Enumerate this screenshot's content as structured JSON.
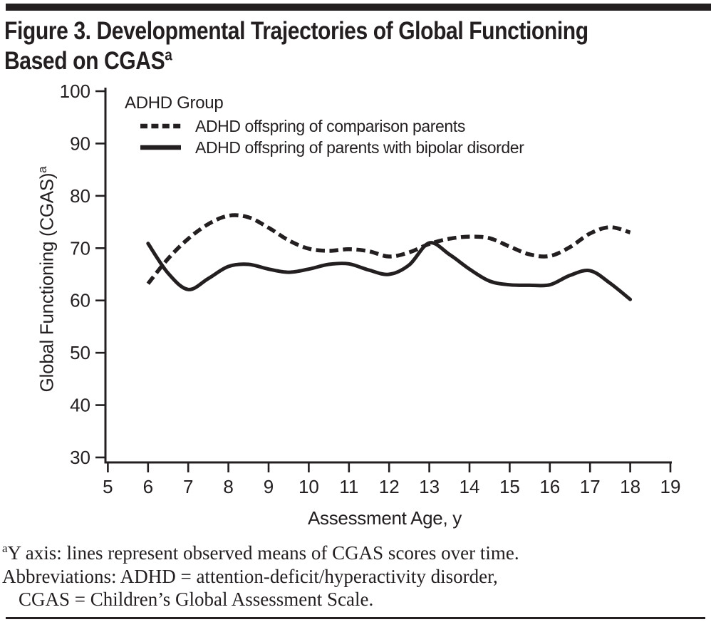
{
  "figure": {
    "title_line1": "Figure 3. Developmental Trajectories of Global Functioning",
    "title_line2": "Based on CGAS",
    "title_superscript": "a"
  },
  "legend": {
    "title": "ADHD Group",
    "items": [
      {
        "label": "ADHD offspring of comparison parents",
        "style": "dashed"
      },
      {
        "label": "ADHD offspring of parents with bipolar disorder",
        "style": "solid"
      }
    ]
  },
  "chart_data": {
    "type": "line",
    "xlabel": "Assessment Age, y",
    "ylabel": "Global Functioning (CGAS)",
    "ylabel_superscript": "a",
    "xlim": [
      5,
      19
    ],
    "ylim": [
      30,
      100
    ],
    "x_ticks": [
      5,
      6,
      7,
      8,
      9,
      10,
      11,
      12,
      13,
      14,
      15,
      16,
      17,
      18,
      19
    ],
    "y_ticks": [
      30,
      40,
      50,
      60,
      70,
      80,
      90,
      100
    ],
    "grid": false,
    "legend_position": "top-left-inside",
    "line_color": "#231f20",
    "series": [
      {
        "name": "ADHD offspring of comparison parents",
        "line_style": "dashed",
        "x": [
          6,
          6.5,
          7,
          7.5,
          8,
          8.5,
          9,
          9.5,
          10,
          10.5,
          11,
          11.5,
          12,
          12.5,
          13,
          13.5,
          14,
          14.5,
          15,
          15.5,
          16,
          16.5,
          17,
          17.5,
          18
        ],
        "y": [
          63.2,
          68.0,
          71.8,
          74.6,
          76.2,
          75.9,
          73.9,
          71.5,
          69.9,
          69.5,
          69.8,
          69.4,
          68.4,
          69.2,
          70.8,
          71.8,
          72.2,
          71.9,
          70.3,
          68.8,
          68.5,
          70.2,
          72.8,
          74.0,
          73.0
        ]
      },
      {
        "name": "ADHD offspring of parents with bipolar disorder",
        "line_style": "solid",
        "x": [
          6,
          6.5,
          7,
          7.5,
          8,
          8.5,
          9,
          9.5,
          10,
          10.5,
          11,
          11.5,
          12,
          12.5,
          13,
          13.5,
          14,
          14.5,
          15,
          15.5,
          16,
          16.5,
          17,
          17.5,
          18
        ],
        "y": [
          70.9,
          65.2,
          62.1,
          64.2,
          66.5,
          66.9,
          66.0,
          65.4,
          66.0,
          66.9,
          67.0,
          65.8,
          65.0,
          66.8,
          71.0,
          68.8,
          66.0,
          63.7,
          63.0,
          62.9,
          63.0,
          64.8,
          65.7,
          63.3,
          60.2
        ]
      }
    ]
  },
  "footnotes": {
    "line1_superscript": "a",
    "line1": "Y axis: lines represent observed means of CGAS scores over time.",
    "line2": "Abbreviations: ADHD = attention-deficit/hyperactivity disorder,",
    "line3": "CGAS = Children’s Global Assessment Scale."
  }
}
